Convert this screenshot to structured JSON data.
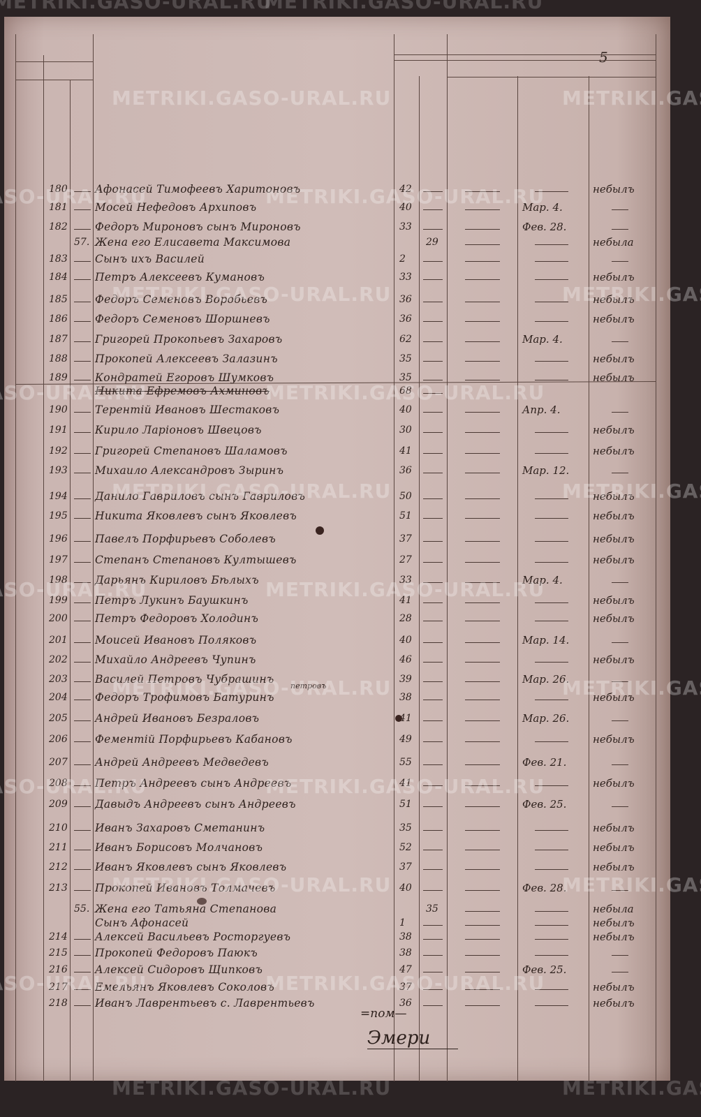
{
  "watermark": "METRIKI.GASO-URAL.RU",
  "page_number": "5",
  "annotation_above_204": "петровъ",
  "rows": [
    {
      "no": "180",
      "family": "",
      "name": "Афонасей Тимофеевъ Харитоновъ",
      "age": "42",
      "female_age": "",
      "date": "",
      "note": "небылъ"
    },
    {
      "no": "181",
      "family": "",
      "name": "Мосей Нефедовъ Архиповъ",
      "age": "40",
      "female_age": "",
      "date": "Мар. 4.",
      "note": ""
    },
    {
      "no": "182",
      "family": "",
      "name": "Федоръ Мироновъ сынъ Мироновъ",
      "age": "33",
      "female_age": "",
      "date": "Фев. 28.",
      "note": ""
    },
    {
      "no": "",
      "family": "57.",
      "name": "Жена его Елисавета Максимова",
      "age": "",
      "female_age": "29",
      "date": "",
      "note": "небыла"
    },
    {
      "no": "183",
      "family": "",
      "name": "Сынъ ихъ Василей",
      "age": "2",
      "female_age": "",
      "date": "",
      "note": ""
    },
    {
      "no": "184",
      "family": "",
      "name": "Петръ Алексеевъ Кумановъ",
      "age": "33",
      "female_age": "",
      "date": "",
      "note": "небылъ"
    },
    {
      "no": "185",
      "family": "",
      "name": "Федоръ Семеновъ Воробьевъ",
      "age": "36",
      "female_age": "",
      "date": "",
      "note": "небылъ"
    },
    {
      "no": "186",
      "family": "",
      "name": "Федоръ Семеновъ Шоршневъ",
      "age": "36",
      "female_age": "",
      "date": "",
      "note": "небылъ"
    },
    {
      "no": "187",
      "family": "",
      "name": "Григорей Прокопьевъ Захаровъ",
      "age": "62",
      "female_age": "",
      "date": "Мар. 4.",
      "note": ""
    },
    {
      "no": "188",
      "family": "",
      "name": "Прокопей Алексеевъ Залазинъ",
      "age": "35",
      "female_age": "",
      "date": "",
      "note": "небылъ"
    },
    {
      "no": "189",
      "family": "",
      "name": "Кондратей Егоровъ Шумковъ",
      "age": "35",
      "female_age": "",
      "date": "",
      "note": "небылъ"
    },
    {
      "no": "",
      "family": "",
      "name": "Никита Ефремовъ Ахминовъ",
      "age": "68",
      "female_age": "",
      "date": "",
      "note": "",
      "struck": true
    },
    {
      "no": "190",
      "family": "",
      "name": "Терентій Ивановъ Шестаковъ",
      "age": "40",
      "female_age": "",
      "date": "Апр. 4.",
      "note": ""
    },
    {
      "no": "191",
      "family": "",
      "name": "Кирило Ларіоновъ Швецовъ",
      "age": "30",
      "female_age": "",
      "date": "",
      "note": "небылъ"
    },
    {
      "no": "192",
      "family": "",
      "name": "Григорей Степановъ Шаламовъ",
      "age": "41",
      "female_age": "",
      "date": "",
      "note": "небылъ"
    },
    {
      "no": "193",
      "family": "",
      "name": "Михаило Александровъ Зыринъ",
      "age": "36",
      "female_age": "",
      "date": "Мар. 12.",
      "note": ""
    },
    {
      "no": "194",
      "family": "",
      "name": "Данило Гавриловъ сынъ Гавриловъ",
      "age": "50",
      "female_age": "",
      "date": "",
      "note": "небылъ"
    },
    {
      "no": "195",
      "family": "",
      "name": "Никита Яковлевъ сынъ Яковлевъ",
      "age": "51",
      "female_age": "",
      "date": "",
      "note": "небылъ"
    },
    {
      "no": "196",
      "family": "",
      "name": "Павелъ Порфирьевъ Соболевъ",
      "age": "37",
      "female_age": "",
      "date": "",
      "note": "небылъ"
    },
    {
      "no": "197",
      "family": "",
      "name": "Степанъ Степановъ Култышевъ",
      "age": "27",
      "female_age": "",
      "date": "",
      "note": "небылъ"
    },
    {
      "no": "198",
      "family": "",
      "name": "Дарьянъ Кириловъ Бѣлыхъ",
      "age": "33",
      "female_age": "",
      "date": "Мар. 4.",
      "note": ""
    },
    {
      "no": "199",
      "family": "",
      "name": "Петръ Лукинъ Баушкинъ",
      "age": "41",
      "female_age": "",
      "date": "",
      "note": "небылъ"
    },
    {
      "no": "200",
      "family": "",
      "name": "Петръ Федоровъ Холодинъ",
      "age": "28",
      "female_age": "",
      "date": "",
      "note": "небылъ"
    },
    {
      "no": "201",
      "family": "",
      "name": "Моисей Ивановъ Поляковъ",
      "age": "40",
      "female_age": "",
      "date": "Мар. 14.",
      "note": ""
    },
    {
      "no": "202",
      "family": "",
      "name": "Михайло Андреевъ Чупинъ",
      "age": "46",
      "female_age": "",
      "date": "",
      "note": "небылъ"
    },
    {
      "no": "203",
      "family": "",
      "name": "Василей Петровъ Чубрашинъ",
      "age": "39",
      "female_age": "",
      "date": "Мар. 26.",
      "note": ""
    },
    {
      "no": "204",
      "family": "",
      "name": "Федоръ Трофимовъ Батуринъ",
      "age": "38",
      "female_age": "",
      "date": "",
      "note": "небылъ"
    },
    {
      "no": "205",
      "family": "",
      "name": "Андрей Ивановъ Безраловъ",
      "age": "41",
      "female_age": "",
      "date": "Мар. 26.",
      "note": ""
    },
    {
      "no": "206",
      "family": "",
      "name": "Фементій Порфирьевъ Кабановъ",
      "age": "49",
      "female_age": "",
      "date": "",
      "note": "небылъ"
    },
    {
      "no": "207",
      "family": "",
      "name": "Андрей Андреевъ Медведевъ",
      "age": "55",
      "female_age": "",
      "date": "Фев. 21.",
      "note": ""
    },
    {
      "no": "208",
      "family": "",
      "name": "Петръ Андреевъ сынъ Андреевъ",
      "age": "41",
      "female_age": "",
      "date": "",
      "note": "небылъ"
    },
    {
      "no": "209",
      "family": "",
      "name": "Давыдъ Андреевъ сынъ Андреевъ",
      "age": "51",
      "female_age": "",
      "date": "Фев. 25.",
      "note": ""
    },
    {
      "no": "210",
      "family": "",
      "name": "Иванъ Захаровъ Сметанинъ",
      "age": "35",
      "female_age": "",
      "date": "",
      "note": "небылъ"
    },
    {
      "no": "211",
      "family": "",
      "name": "Иванъ Борисовъ Молчановъ",
      "age": "52",
      "female_age": "",
      "date": "",
      "note": "небылъ"
    },
    {
      "no": "212",
      "family": "",
      "name": "Иванъ Яковлевъ сынъ Яковлевъ",
      "age": "37",
      "female_age": "",
      "date": "",
      "note": "небылъ"
    },
    {
      "no": "213",
      "family": "",
      "name": "Прокопей Ивановъ Толмачевъ",
      "age": "40",
      "female_age": "",
      "date": "Фев. 28.",
      "note": ""
    },
    {
      "no": "",
      "family": "55.",
      "name": "Жена его Татьяна Степанова",
      "age": "",
      "female_age": "35",
      "date": "",
      "note": "небыла"
    },
    {
      "no": "",
      "family": "",
      "name": "Сынъ Афонасей",
      "age": "1",
      "female_age": "",
      "date": "",
      "note": "небылъ",
      "small": true
    },
    {
      "no": "214",
      "family": "",
      "name": "Алексей Васильевъ Росторгуевъ",
      "age": "38",
      "female_age": "",
      "date": "",
      "note": "небылъ"
    },
    {
      "no": "215",
      "family": "",
      "name": "Прокопей Федоровъ Паюкъ",
      "age": "38",
      "female_age": "",
      "date": "",
      "note": ""
    },
    {
      "no": "216",
      "family": "",
      "name": "Алексей Сидоровъ Щипковъ",
      "age": "47",
      "female_age": "",
      "date": "Фев. 25.",
      "note": ""
    },
    {
      "no": "217",
      "family": "",
      "name": "Емельянъ Яковлевъ Соколовъ",
      "age": "37",
      "female_age": "",
      "date": "",
      "note": "небылъ"
    },
    {
      "no": "218",
      "family": "",
      "name": "Иванъ Лаврентьевъ с. Лаврентьевъ",
      "age": "36",
      "female_age": "",
      "date": "",
      "note": "небылъ"
    }
  ],
  "signature": {
    "line1": "=пом—",
    "line2": "Эмери"
  }
}
